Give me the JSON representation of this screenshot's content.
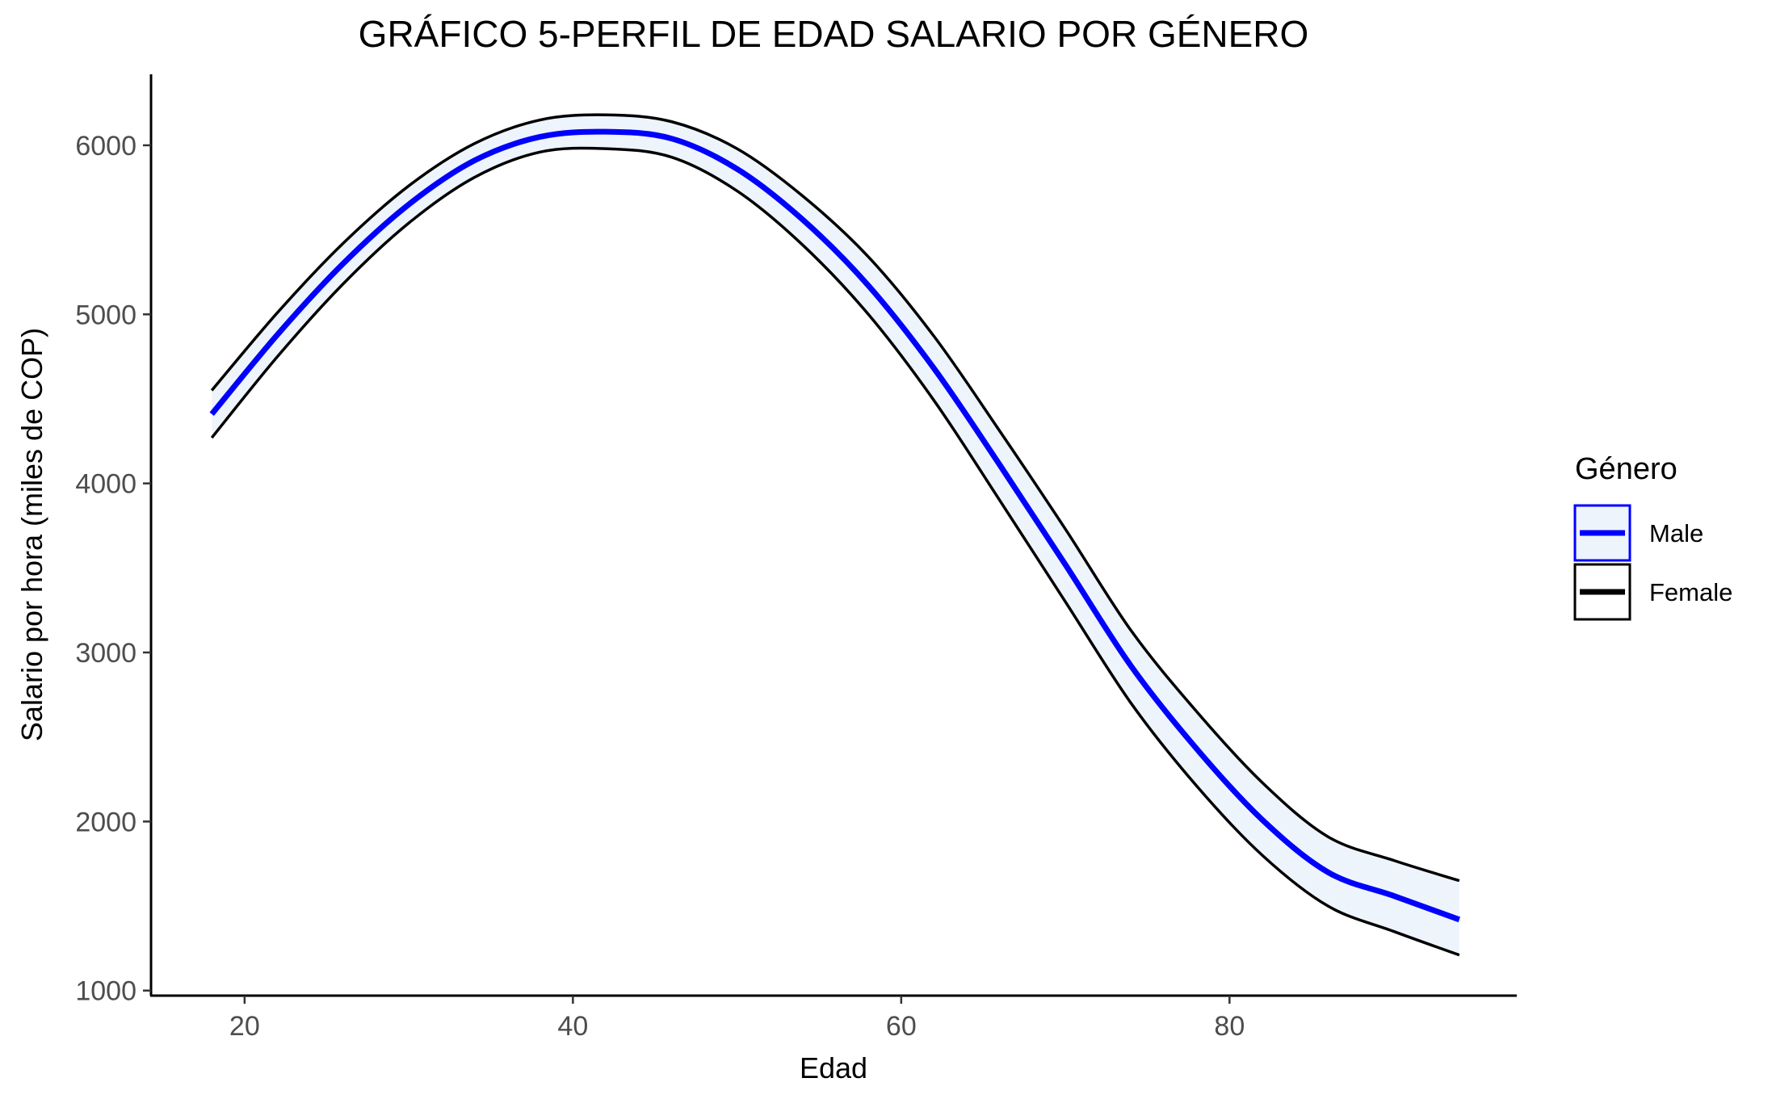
{
  "chart_data": {
    "type": "line",
    "title": "GRÁFICO 5-PERFIL DE EDAD SALARIO POR GÉNERO",
    "xlabel": "Edad",
    "ylabel": "Salario por hora (miles de COP)",
    "xlim": [
      14.3,
      97.5
    ],
    "ylim": [
      970,
      6420
    ],
    "x_ticks": [
      20,
      40,
      60,
      80
    ],
    "y_ticks": [
      1000,
      2000,
      3000,
      4000,
      5000,
      6000
    ],
    "grid": false,
    "legend": {
      "title": "Género",
      "placement": "right",
      "entries": [
        "Male",
        "Female"
      ]
    },
    "series": [
      {
        "name": "Male",
        "color": "#0000ff",
        "x": [
          18,
          22,
          26,
          30,
          34,
          38,
          42,
          46,
          50,
          54,
          58,
          62,
          66,
          70,
          74,
          78,
          82,
          86,
          90,
          94
        ],
        "values": [
          4410,
          4880,
          5300,
          5650,
          5910,
          6050,
          6080,
          6040,
          5860,
          5560,
          5170,
          4680,
          4110,
          3520,
          2920,
          2430,
          2010,
          1700,
          1560,
          1420
        ],
        "ci_lower": [
          4270,
          4750,
          5180,
          5540,
          5810,
          5960,
          5980,
          5930,
          5730,
          5410,
          5000,
          4490,
          3900,
          3300,
          2700,
          2210,
          1800,
          1500,
          1350,
          1210
        ],
        "ci_upper": [
          4550,
          5010,
          5420,
          5760,
          6010,
          6150,
          6180,
          6140,
          5980,
          5700,
          5340,
          4870,
          4310,
          3730,
          3130,
          2650,
          2230,
          1910,
          1770,
          1650
        ]
      },
      {
        "name": "Female",
        "color": "#000000"
      }
    ],
    "band_fill": "#eef4fb"
  }
}
